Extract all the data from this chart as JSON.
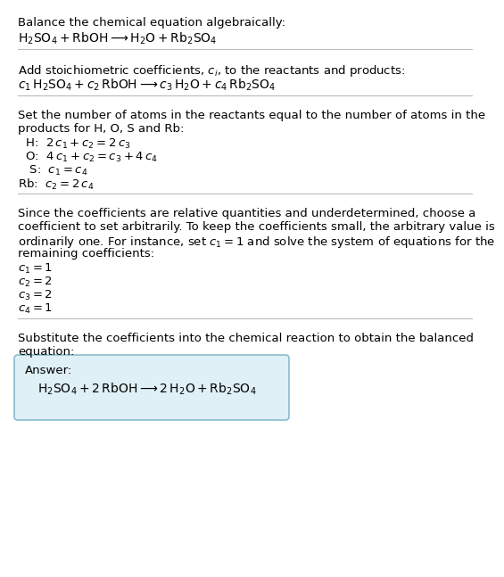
{
  "bg_color": "#ffffff",
  "text_color": "#000000",
  "font_size": 9.5,
  "section1_line1": "Balance the chemical equation algebraically:",
  "section2_line1": "Add stoichiometric coefficients, $c_i$, to the reactants and products:",
  "section3_line1": "Set the number of atoms in the reactants equal to the number of atoms in the",
  "section3_line2": "products for H, O, S and Rb:",
  "section4_line1": "Since the coefficients are relative quantities and underdetermined, choose a",
  "section4_line2": "coefficient to set arbitrarily. To keep the coefficients small, the arbitrary value is",
  "section4_line3": "ordinarily one. For instance, set $c_1 = 1$ and solve the system of equations for the",
  "section4_line4": "remaining coefficients:",
  "section5_line1": "Substitute the coefficients into the chemical reaction to obtain the balanced",
  "section5_line2": "equation:",
  "answer_label": "Answer:",
  "answer_box_color": "#dff0f7",
  "answer_box_border": "#8bbccc",
  "separator_color": "#bbbbbb"
}
